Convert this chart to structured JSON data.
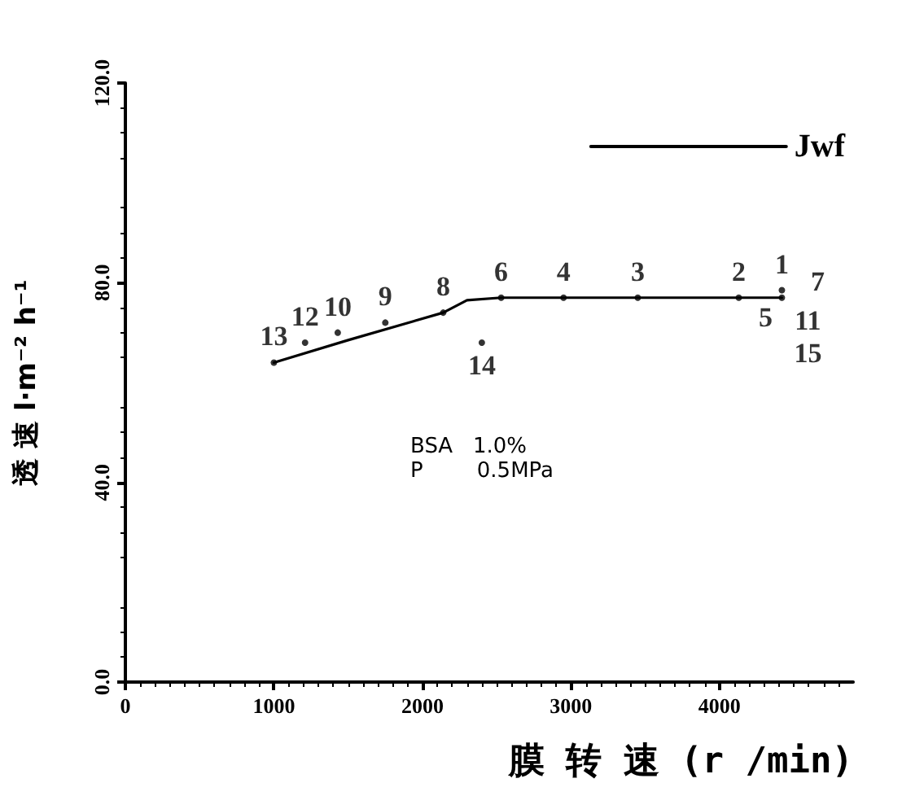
{
  "chart_data": {
    "type": "line",
    "xlabel": "膜 转 速 (r /min)",
    "ylabel": "透 速 l·m⁻² h⁻¹",
    "xlim": [
      0,
      4900
    ],
    "xticks": [
      0,
      1000,
      2000,
      3000,
      4000
    ],
    "ylim": [
      0,
      120
    ],
    "yticks": [
      {
        "value": 0,
        "label": "0.0"
      },
      {
        "value": 40,
        "label": "40.0"
      },
      {
        "value": 80,
        "label": "80.0"
      },
      {
        "value": 120,
        "label": "120.0"
      }
    ],
    "grid": false,
    "legend": "top right",
    "series": [
      {
        "name": "Jwf",
        "color": "#000000",
        "marker": "none",
        "line_style": "solid",
        "x": [
          1000,
          1500,
          2140,
          2300,
          2530,
          4420
        ],
        "values": [
          64,
          68.5,
          74,
          76.5,
          77,
          77
        ]
      },
      {
        "type": "scatter",
        "color": "#000000",
        "marker": "circle",
        "x": [
          1000,
          1210,
          1430,
          1750,
          2140,
          2400,
          2530,
          2950,
          3450,
          4130,
          4420,
          4420
        ],
        "values": [
          64,
          68,
          70,
          72,
          74,
          68,
          77,
          77,
          77,
          77,
          78.5,
          77
        ]
      }
    ],
    "annotations": [
      {
        "text": "13",
        "x": 1000,
        "y": 64
      },
      {
        "text": "12",
        "x": 1210,
        "y": 68
      },
      {
        "text": "10",
        "x": 1430,
        "y": 70
      },
      {
        "text": "9",
        "x": 1750,
        "y": 72
      },
      {
        "text": "8",
        "x": 2140,
        "y": 74
      },
      {
        "text": "14",
        "x": 2400,
        "y": 68
      },
      {
        "text": "6",
        "x": 2530,
        "y": 77
      },
      {
        "text": "4",
        "x": 2950,
        "y": 77
      },
      {
        "text": "3",
        "x": 3450,
        "y": 77
      },
      {
        "text": "2",
        "x": 4130,
        "y": 77
      },
      {
        "text": "1",
        "x": 4420,
        "y": 78.5
      },
      {
        "text": "7",
        "x": 4420,
        "y": 77
      },
      {
        "text": "5",
        "x": 4420,
        "y": 77
      },
      {
        "text": "11",
        "x": 4420,
        "y": 77
      },
      {
        "text": "15",
        "x": 4420,
        "y": 77
      },
      "BSA   1.0%",
      "P        0.5MPa"
    ]
  }
}
